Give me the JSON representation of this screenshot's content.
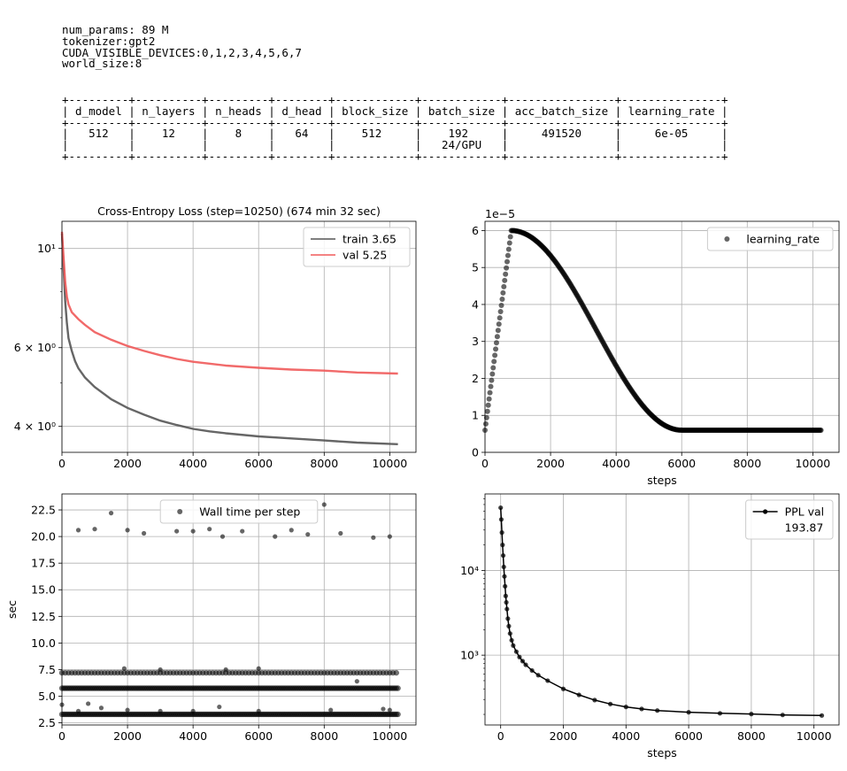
{
  "info_lines": [
    "num_params: 89 M",
    "tokenizer:gpt2",
    "CUDA_VISIBLE_DEVICES:0,1,2,3,4,5,6,7",
    "world_size:8"
  ],
  "param_table": {
    "headers": [
      "d_model",
      "n_layers",
      "n_heads",
      "d_head",
      "block_size",
      "batch_size",
      "acc_batch_size",
      "learning_rate"
    ],
    "rows": [
      [
        "512",
        "12",
        "8",
        "64",
        "512",
        "192",
        "491520",
        "6e-05"
      ],
      [
        "",
        "",
        "",
        "",
        "",
        "24/GPU",
        "",
        ""
      ]
    ]
  },
  "chart_data": [
    {
      "id": "loss",
      "type": "line",
      "title": "Cross-Entropy Loss (step=10250) (674 min 32 sec)",
      "xlabel": "",
      "ylabel": "",
      "yscale": "log",
      "xlim": [
        0,
        10800
      ],
      "ylim": [
        3.5,
        11.5
      ],
      "xticks": [
        0,
        2000,
        4000,
        6000,
        8000,
        10000
      ],
      "xtick_labels": [
        "0",
        "2000",
        "4000",
        "6000",
        "8000",
        "10000"
      ],
      "yticks": [
        4,
        6,
        10
      ],
      "ytick_labels": [
        "4 × 10⁰",
        "6 × 10⁰",
        "10¹"
      ],
      "grid": true,
      "legend": "top-right",
      "series": [
        {
          "name": "train 3.65",
          "color": "#555555",
          "points": [
            [
              0,
              10.8
            ],
            [
              50,
              9.0
            ],
            [
              100,
              7.6
            ],
            [
              150,
              6.8
            ],
            [
              200,
              6.3
            ],
            [
              300,
              5.9
            ],
            [
              400,
              5.6
            ],
            [
              500,
              5.4
            ],
            [
              700,
              5.15
            ],
            [
              1000,
              4.9
            ],
            [
              1500,
              4.6
            ],
            [
              2000,
              4.4
            ],
            [
              2500,
              4.25
            ],
            [
              3000,
              4.12
            ],
            [
              3500,
              4.03
            ],
            [
              4000,
              3.95
            ],
            [
              4500,
              3.9
            ],
            [
              5000,
              3.86
            ],
            [
              6000,
              3.8
            ],
            [
              7000,
              3.76
            ],
            [
              8000,
              3.72
            ],
            [
              9000,
              3.68
            ],
            [
              10250,
              3.65
            ]
          ]
        },
        {
          "name": "val 5.25",
          "color": "#f05a5a",
          "points": [
            [
              0,
              10.9
            ],
            [
              50,
              9.5
            ],
            [
              100,
              8.4
            ],
            [
              150,
              7.8
            ],
            [
              200,
              7.5
            ],
            [
              300,
              7.2
            ],
            [
              500,
              6.95
            ],
            [
              700,
              6.75
            ],
            [
              1000,
              6.5
            ],
            [
              1500,
              6.25
            ],
            [
              2000,
              6.05
            ],
            [
              2500,
              5.9
            ],
            [
              3000,
              5.77
            ],
            [
              3500,
              5.66
            ],
            [
              4000,
              5.58
            ],
            [
              5000,
              5.47
            ],
            [
              6000,
              5.41
            ],
            [
              7000,
              5.36
            ],
            [
              8000,
              5.33
            ],
            [
              9000,
              5.28
            ],
            [
              10250,
              5.25
            ]
          ]
        }
      ]
    },
    {
      "id": "lr",
      "type": "scatter",
      "title": "",
      "xlabel": "steps",
      "ylabel": "",
      "offset_text": "1e−5",
      "xlim": [
        0,
        10800
      ],
      "ylim": [
        0,
        6.25
      ],
      "xticks": [
        0,
        2000,
        4000,
        6000,
        8000,
        10000
      ],
      "xtick_labels": [
        "0",
        "2000",
        "4000",
        "6000",
        "8000",
        "10000"
      ],
      "yticks": [
        0,
        1,
        2,
        3,
        4,
        5,
        6
      ],
      "ytick_labels": [
        "0",
        "1",
        "2",
        "3",
        "4",
        "5",
        "6"
      ],
      "grid": true,
      "legend": "top-right",
      "series": [
        {
          "name": "learning_rate",
          "color": "#000000",
          "schedule": {
            "start": 0.6,
            "warmup_steps": 800,
            "peak": 6.0,
            "decay_end": 6000,
            "floor": 0.6,
            "end": 10250,
            "scale": "1e-5"
          }
        }
      ]
    },
    {
      "id": "walltime",
      "type": "scatter",
      "title": "",
      "xlabel": "",
      "ylabel": "sec",
      "xlim": [
        0,
        10800
      ],
      "ylim": [
        2.3,
        24.0
      ],
      "xticks": [
        0,
        2000,
        4000,
        6000,
        8000,
        10000
      ],
      "xtick_labels": [
        "0",
        "2000",
        "4000",
        "6000",
        "8000",
        "10000"
      ],
      "yticks": [
        2.5,
        5.0,
        7.5,
        10.0,
        12.5,
        15.0,
        17.5,
        20.0,
        22.5
      ],
      "ytick_labels": [
        "2.5",
        "5.0",
        "7.5",
        "10.0",
        "12.5",
        "15.0",
        "17.5",
        "20.0",
        "22.5"
      ],
      "grid": true,
      "legend": "top-center",
      "series": [
        {
          "name": "Wall time per step",
          "color": "#000000",
          "bands": [
            {
              "y": 3.3,
              "x_start": 0,
              "x_end": 10250,
              "step": 50
            },
            {
              "y": 5.75,
              "x_start": 0,
              "x_end": 10250,
              "step": 50
            },
            {
              "y": 7.2,
              "x_start": 0,
              "x_end": 10250,
              "step": 100
            }
          ],
          "outliers": [
            [
              500,
              20.6
            ],
            [
              1000,
              20.7
            ],
            [
              1500,
              22.2
            ],
            [
              2000,
              20.6
            ],
            [
              2500,
              20.3
            ],
            [
              3500,
              20.5
            ],
            [
              4000,
              20.5
            ],
            [
              4500,
              20.7
            ],
            [
              4900,
              20.0
            ],
            [
              5500,
              20.5
            ],
            [
              6500,
              20.0
            ],
            [
              7000,
              20.6
            ],
            [
              7500,
              20.2
            ],
            [
              8000,
              23.0
            ],
            [
              8500,
              20.3
            ],
            [
              9500,
              19.9
            ],
            [
              10000,
              20.0
            ],
            [
              0,
              4.2
            ],
            [
              500,
              3.6
            ],
            [
              800,
              4.3
            ],
            [
              1200,
              3.9
            ],
            [
              2000,
              3.7
            ],
            [
              3000,
              3.6
            ],
            [
              4000,
              3.6
            ],
            [
              4800,
              4.0
            ],
            [
              6000,
              3.6
            ],
            [
              8200,
              3.7
            ],
            [
              9000,
              6.4
            ],
            [
              9800,
              3.8
            ],
            [
              10000,
              3.7
            ],
            [
              3000,
              7.5
            ],
            [
              5000,
              7.5
            ],
            [
              6000,
              7.6
            ],
            [
              1900,
              7.6
            ]
          ]
        }
      ]
    },
    {
      "id": "ppl",
      "type": "line",
      "title": "",
      "xlabel": "steps",
      "ylabel": "",
      "yscale": "log",
      "xlim": [
        -500,
        10800
      ],
      "ylim": [
        150,
        80000
      ],
      "xticks": [
        0,
        2000,
        4000,
        6000,
        8000,
        10000
      ],
      "xtick_labels": [
        "0",
        "2000",
        "4000",
        "6000",
        "8000",
        "10000"
      ],
      "yticks": [
        1000,
        10000
      ],
      "ytick_labels": [
        "10³",
        "10⁴"
      ],
      "grid": true,
      "legend": "top-right",
      "series": [
        {
          "name": "PPL val\n193.87",
          "color": "#000000",
          "points": [
            [
              0,
              55000
            ],
            [
              20,
              40000
            ],
            [
              40,
              28000
            ],
            [
              60,
              20000
            ],
            [
              80,
              15000
            ],
            [
              100,
              11000
            ],
            [
              120,
              8500
            ],
            [
              140,
              6500
            ],
            [
              160,
              5000
            ],
            [
              180,
              4200
            ],
            [
              200,
              3500
            ],
            [
              230,
              2700
            ],
            [
              260,
              2200
            ],
            [
              300,
              1800
            ],
            [
              350,
              1500
            ],
            [
              400,
              1300
            ],
            [
              500,
              1100
            ],
            [
              600,
              950
            ],
            [
              700,
              850
            ],
            [
              800,
              770
            ],
            [
              1000,
              660
            ],
            [
              1200,
              580
            ],
            [
              1500,
              500
            ],
            [
              2000,
              400
            ],
            [
              2500,
              340
            ],
            [
              3000,
              295
            ],
            [
              3500,
              265
            ],
            [
              4000,
              245
            ],
            [
              4500,
              232
            ],
            [
              5000,
              222
            ],
            [
              6000,
              212
            ],
            [
              7000,
              206
            ],
            [
              8000,
              202
            ],
            [
              9000,
              197
            ],
            [
              10250,
              193.87
            ]
          ]
        }
      ]
    }
  ]
}
